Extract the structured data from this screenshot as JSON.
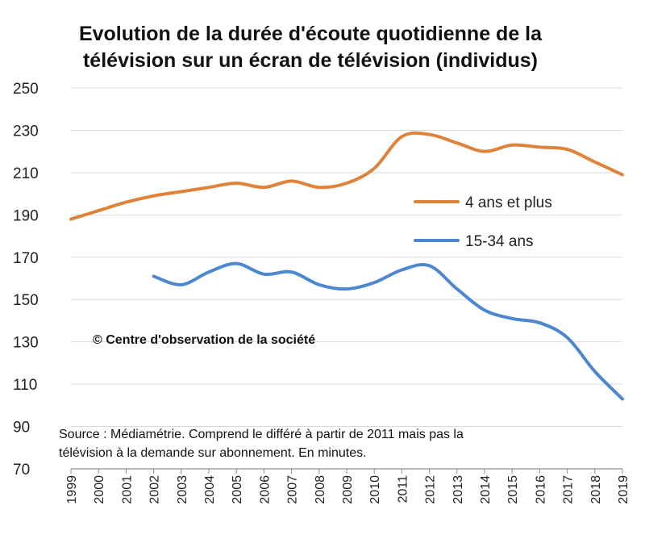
{
  "chart_data": {
    "type": "line",
    "title_lines": [
      "Evolution de la durée d'écoute quotidienne de la",
      "télévision sur un écran de télévision (individus)"
    ],
    "x": [
      "1999",
      "2000",
      "2001",
      "2002",
      "2003",
      "2004",
      "2005",
      "2006",
      "2007",
      "2008",
      "2009",
      "2010",
      "2011",
      "2012",
      "2013",
      "2014",
      "2015",
      "2016",
      "2017",
      "2018",
      "2019"
    ],
    "ylim": [
      70,
      250
    ],
    "yticks": [
      70,
      90,
      110,
      130,
      150,
      170,
      190,
      210,
      230,
      250
    ],
    "grid": true,
    "series": [
      {
        "name": "4 ans et plus",
        "color": "#E0833A",
        "values": [
          188,
          192,
          196,
          199,
          201,
          203,
          205,
          203,
          206,
          203,
          205,
          212,
          227,
          228,
          224,
          220,
          223,
          222,
          221,
          215,
          209
        ]
      },
      {
        "name": "15-34 ans",
        "color": "#4C87CF",
        "values": [
          null,
          null,
          null,
          161,
          157,
          163,
          167,
          162,
          163,
          157,
          155,
          158,
          164,
          166,
          155,
          145,
          141,
          139,
          132,
          116,
          103
        ]
      }
    ],
    "copyright": "© Centre d'observation de la société",
    "source_lines": [
      "Source : Médiamétrie. Comprend le différé à partir de 2011 mais pas la",
      "télévision à la demande sur abonnement. En minutes."
    ]
  }
}
